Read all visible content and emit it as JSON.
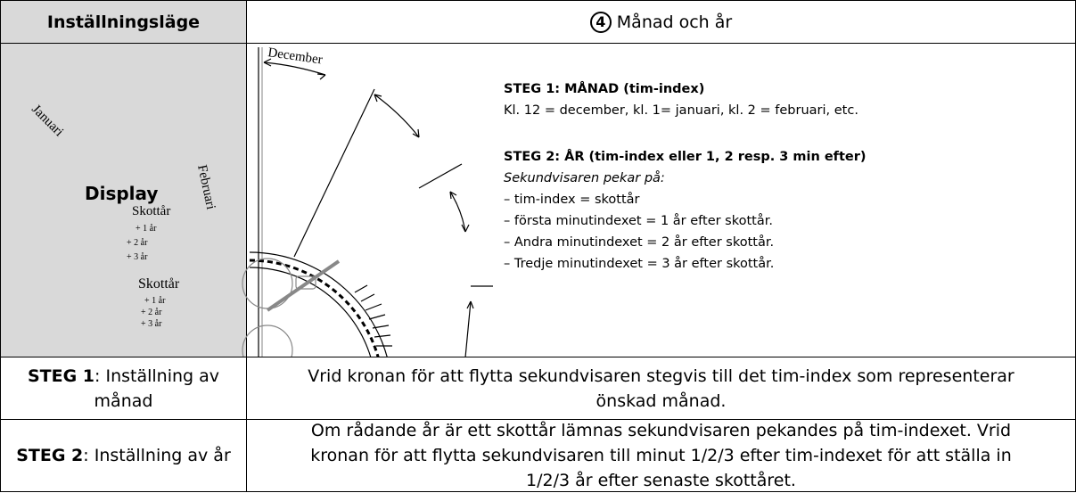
{
  "header": {
    "left": "Inställningsläge",
    "number": "4",
    "title": "Månad och år"
  },
  "diagram": {
    "december": "December",
    "januari": "Januari",
    "februari": "Februari",
    "display": "Display",
    "leap1": "Skottår",
    "plus1a": "+ 1 år",
    "plus2a": "+ 2 år",
    "plus3a": "+ 3 år",
    "leap2": "Skottår",
    "plus1b": "+ 1 år",
    "plus2b": "+ 2 år",
    "plus3b": "+ 3 år"
  },
  "instructions": {
    "step1_title": "STEG 1: MÅNAD (tim-index)",
    "step1_text": "Kl. 12 = december, kl. 1= januari, kl. 2 = februari, etc.",
    "step2_title": "STEG 2: ÅR (tim-index eller 1, 2 resp. 3 min efter)",
    "step2_intro": "Sekundvisaren pekar på:",
    "items": [
      "– tim-index = skottår",
      "– första minutindexet = 1 år efter skottår.",
      "– Andra minutindexet = 2 år efter skottår.",
      "– Tredje minutindexet = 3 år efter skottår."
    ]
  },
  "rows": [
    {
      "label_bold": "STEG 1",
      "label": ": Inställning av månad",
      "description": "Vrid kronan för att flytta sekundvisaren stegvis till det tim-index som representerar önskad månad."
    },
    {
      "label_bold": "STEG 2",
      "label": ": Inställning av år",
      "description": "Om rådande år är ett skottår lämnas sekundvisaren pekandes på tim-indexet. Vrid kronan för att flytta sekundvisaren till minut 1/2/3 efter tim-indexet för att ställa in 1/2/3 år efter senaste skottåret."
    }
  ]
}
